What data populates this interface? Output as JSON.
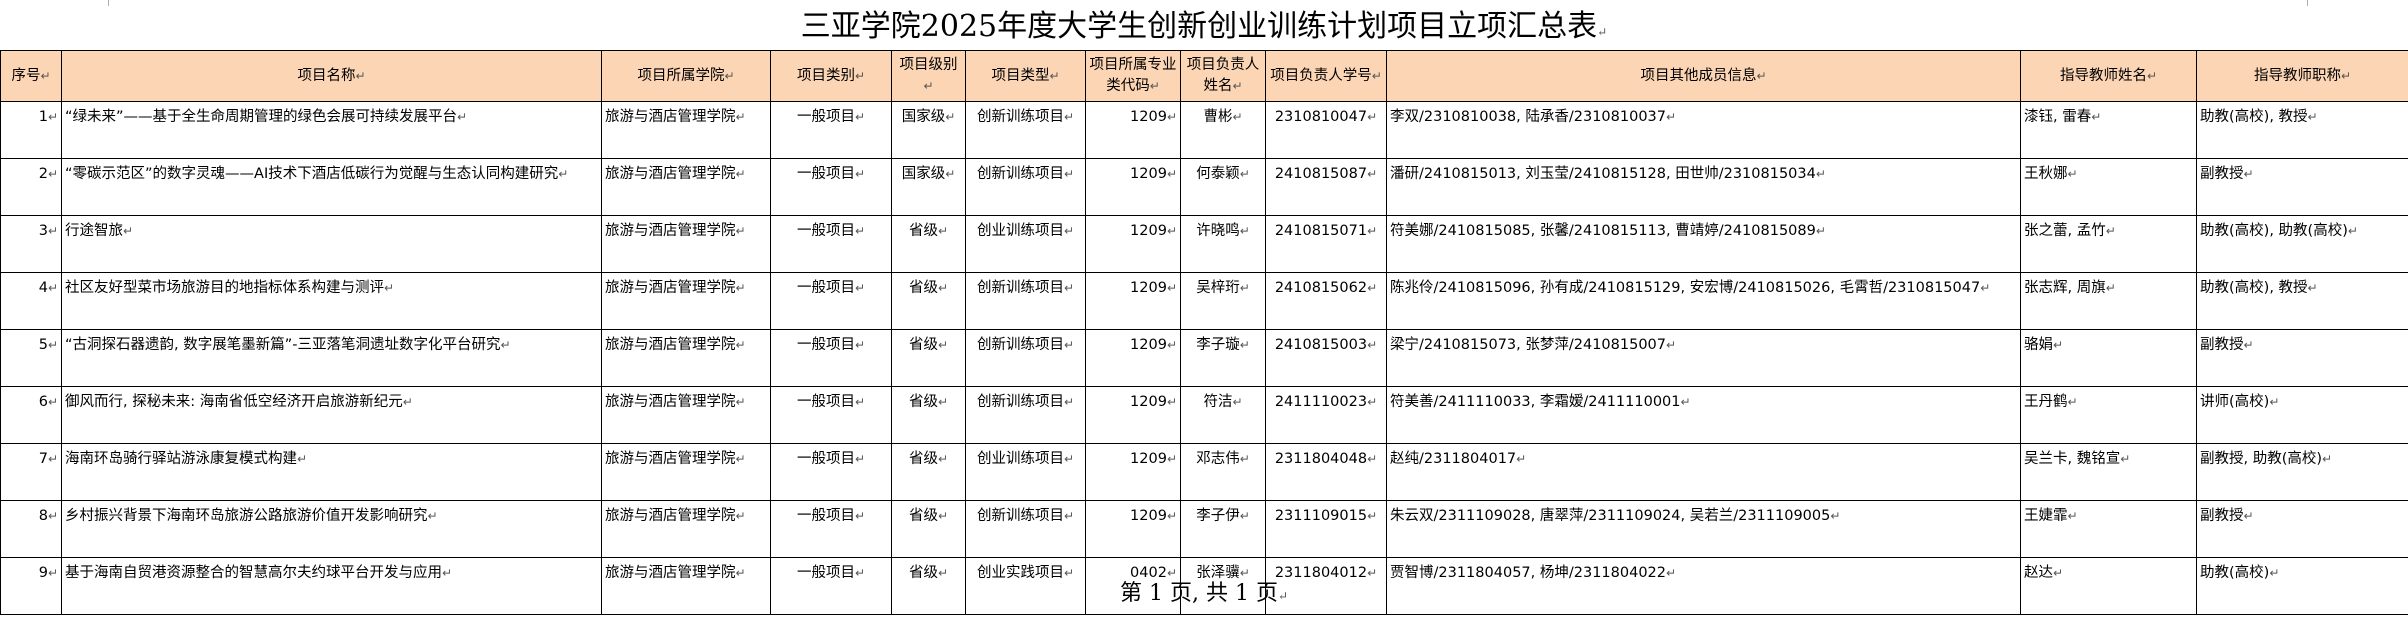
{
  "title": "三亚学院2025年度大学生创新创业训练计划项目立项汇总表",
  "columns": [
    "序号",
    "项目名称",
    "项目所属学院",
    "项目类别",
    "项目级别",
    "项目类型",
    "项目所属专业类代码",
    "项目负责人姓名",
    "项目负责人学号",
    "项目其他成员信息",
    "指导教师姓名",
    "指导教师职称"
  ],
  "rows": [
    {
      "idx": "1",
      "name": "“绿未来”——基于全生命周期管理的绿色会展可持续发展平台",
      "college": "旅游与酒店管理学院",
      "category": "一般项目",
      "level": "国家级",
      "type": "创新训练项目",
      "code": "1209",
      "leader": "曹彬",
      "sid": "2310810047",
      "members": "李双/2310810038, 陆承香/2310810037",
      "advisor": "漆钰, 雷春",
      "title": "助教(高校), 教授"
    },
    {
      "idx": "2",
      "name": "“零碳示范区”的数字灵魂——AI技术下酒店低碳行为觉醒与生态认同构建研究",
      "college": "旅游与酒店管理学院",
      "category": "一般项目",
      "level": "国家级",
      "type": "创新训练项目",
      "code": "1209",
      "leader": "何泰颖",
      "sid": "2410815087",
      "members": "潘研/2410815013, 刘玉莹/2410815128, 田世帅/2310815034",
      "advisor": "王秋娜",
      "title": "副教授"
    },
    {
      "idx": "3",
      "name": "行途智旅",
      "college": "旅游与酒店管理学院",
      "category": "一般项目",
      "level": "省级",
      "type": "创业训练项目",
      "code": "1209",
      "leader": "许晓鸣",
      "sid": "2410815071",
      "members": "符美娜/2410815085, 张馨/2410815113, 曹靖婷/2410815089",
      "advisor": "张之蕾, 孟竹",
      "title": "助教(高校), 助教(高校)"
    },
    {
      "idx": "4",
      "name": "社区友好型菜市场旅游目的地指标体系构建与测评",
      "college": "旅游与酒店管理学院",
      "category": "一般项目",
      "level": "省级",
      "type": "创新训练项目",
      "code": "1209",
      "leader": "吴梓珩",
      "sid": "2410815062",
      "members": "陈兆伶/2410815096, 孙有成/2410815129, 安宏博/2410815026, 毛霄哲/2310815047",
      "advisor": "张志辉, 周旗",
      "title": "助教(高校), 教授"
    },
    {
      "idx": "5",
      "name": "“古洞探石器遗韵, 数字展笔墨新篇”-三亚落笔洞遗址数字化平台研究",
      "college": "旅游与酒店管理学院",
      "category": "一般项目",
      "level": "省级",
      "type": "创新训练项目",
      "code": "1209",
      "leader": "李子璇",
      "sid": "2410815003",
      "members": "梁宁/2410815073, 张梦萍/2410815007",
      "advisor": "骆娟",
      "title": "副教授"
    },
    {
      "idx": "6",
      "name": "御风而行, 探秘未来: 海南省低空经济开启旅游新纪元",
      "college": "旅游与酒店管理学院",
      "category": "一般项目",
      "level": "省级",
      "type": "创新训练项目",
      "code": "1209",
      "leader": "符洁",
      "sid": "2411110023",
      "members": "符美善/2411110033, 李霜嫒/2411110001",
      "advisor": "王丹鹤",
      "title": "讲师(高校)"
    },
    {
      "idx": "7",
      "name": "海南环岛骑行驿站游泳康复模式构建",
      "college": "旅游与酒店管理学院",
      "category": "一般项目",
      "level": "省级",
      "type": "创业训练项目",
      "code": "1209",
      "leader": "邓志伟",
      "sid": "2311804048",
      "members": "赵纯/2311804017",
      "advisor": "吴兰卡, 魏铭宣",
      "title": "副教授, 助教(高校)"
    },
    {
      "idx": "8",
      "name": "乡村振兴背景下海南环岛旅游公路旅游价值开发影响研究",
      "college": "旅游与酒店管理学院",
      "category": "一般项目",
      "level": "省级",
      "type": "创新训练项目",
      "code": "1209",
      "leader": "李子伊",
      "sid": "2311109015",
      "members": "朱云双/2311109028, 唐翠萍/2311109024, 吴若兰/2311109005",
      "advisor": "王婕霏",
      "title": "副教授"
    },
    {
      "idx": "9",
      "name": "基于海南自贸港资源整合的智慧高尔夫约球平台开发与应用",
      "college": "旅游与酒店管理学院",
      "category": "一般项目",
      "level": "省级",
      "type": "创业实践项目",
      "code": "0402",
      "leader": "张泽骥",
      "sid": "2311804012",
      "members": "贾智博/2311804057, 杨坤/2311804022",
      "advisor": "赵达",
      "title": "助教(高校)"
    }
  ],
  "footer": "第 1 页, 共 1 页"
}
